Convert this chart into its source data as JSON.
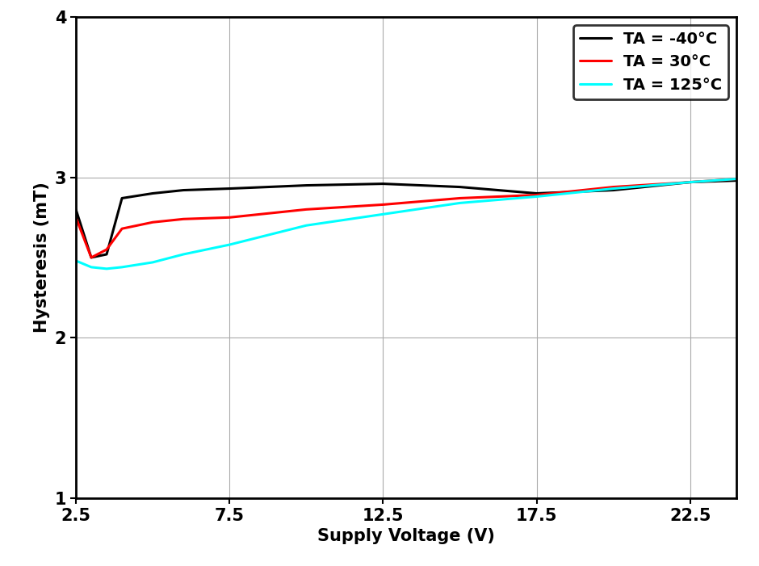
{
  "xlabel": "Supply Voltage (V)",
  "ylabel": "Hysteresis (mT)",
  "xlim": [
    2.5,
    24.0
  ],
  "ylim": [
    1.0,
    4.0
  ],
  "xticks": [
    2.5,
    7.5,
    12.5,
    17.5,
    22.5
  ],
  "yticks": [
    1,
    2,
    3,
    4
  ],
  "grid_color": "#aaaaaa",
  "bg_color": "#ffffff",
  "series": [
    {
      "label": "TA = -40°C",
      "color": "#000000",
      "linewidth": 2.2,
      "x": [
        2.5,
        3.0,
        3.5,
        4.0,
        5.0,
        6.0,
        7.5,
        10.0,
        12.5,
        15.0,
        17.5,
        20.0,
        22.5,
        24.0
      ],
      "y": [
        2.8,
        2.5,
        2.52,
        2.87,
        2.9,
        2.92,
        2.93,
        2.95,
        2.96,
        2.94,
        2.9,
        2.92,
        2.97,
        2.98
      ]
    },
    {
      "label": "TA = 30°C",
      "color": "#ff0000",
      "linewidth": 2.2,
      "x": [
        2.5,
        3.0,
        3.5,
        4.0,
        5.0,
        6.0,
        7.5,
        10.0,
        12.5,
        15.0,
        17.5,
        20.0,
        22.5,
        24.0
      ],
      "y": [
        2.75,
        2.5,
        2.55,
        2.68,
        2.72,
        2.74,
        2.75,
        2.8,
        2.83,
        2.87,
        2.89,
        2.94,
        2.97,
        2.99
      ]
    },
    {
      "label": "TA = 125°C",
      "color": "#00ffff",
      "linewidth": 2.2,
      "x": [
        2.5,
        3.0,
        3.5,
        4.0,
        5.0,
        6.0,
        7.5,
        10.0,
        12.5,
        15.0,
        17.5,
        20.0,
        22.5,
        24.0
      ],
      "y": [
        2.48,
        2.44,
        2.43,
        2.44,
        2.47,
        2.52,
        2.58,
        2.7,
        2.77,
        2.84,
        2.88,
        2.93,
        2.97,
        2.99
      ]
    }
  ],
  "legend_loc": "upper right",
  "legend_fontsize": 14,
  "axis_label_fontsize": 15,
  "tick_fontsize": 15,
  "spine_linewidth": 2.0,
  "legend_linewidth": 2.0
}
